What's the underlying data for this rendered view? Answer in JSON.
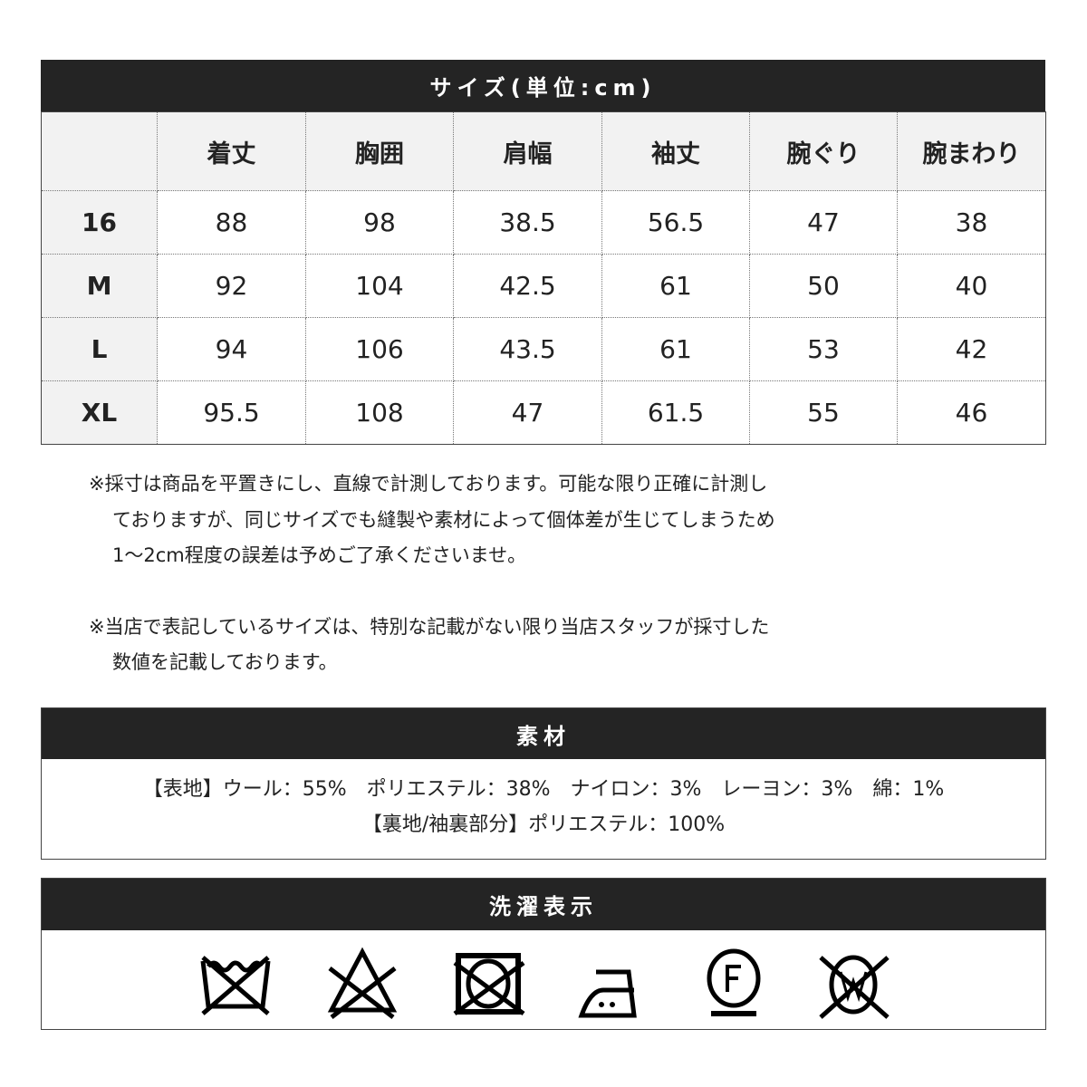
{
  "size_table": {
    "title": "サイズ(単位:cm)",
    "columns": [
      "",
      "着丈",
      "胸囲",
      "肩幅",
      "袖丈",
      "腕ぐり",
      "腕まわり"
    ],
    "rows": [
      [
        "16",
        "88",
        "98",
        "38.5",
        "56.5",
        "47",
        "38"
      ],
      [
        "M",
        "92",
        "104",
        "42.5",
        "61",
        "50",
        "40"
      ],
      [
        "L",
        "94",
        "106",
        "43.5",
        "61",
        "53",
        "42"
      ],
      [
        "XL",
        "95.5",
        "108",
        "47",
        "61.5",
        "55",
        "46"
      ]
    ]
  },
  "notes": [
    [
      "※採寸は商品を平置きにし、直線で計測しております。可能な限り正確に計測し",
      "ておりますが、同じサイズでも縫製や素材によって個体差が生じてしまうため",
      "1～2cm程度の誤差は予めご了承くださいませ。"
    ],
    [
      "※当店で表記しているサイズは、特別な記載がない限り当店スタッフが採寸した",
      "数値を記載しております。"
    ]
  ],
  "material": {
    "title": "素材",
    "lines": [
      "【表地】ウール：55%　ポリエステル：38%　ナイロン：3%　レーヨン：3%　綿：1%",
      "【裏地/袖裏部分】ポリエステル：100%"
    ]
  },
  "washing": {
    "title": "洗濯表示",
    "icons": [
      "no-wash-icon",
      "no-bleach-icon",
      "no-tumble-dry-icon",
      "iron-medium-icon",
      "dry-clean-f-icon",
      "no-wet-clean-icon"
    ]
  }
}
